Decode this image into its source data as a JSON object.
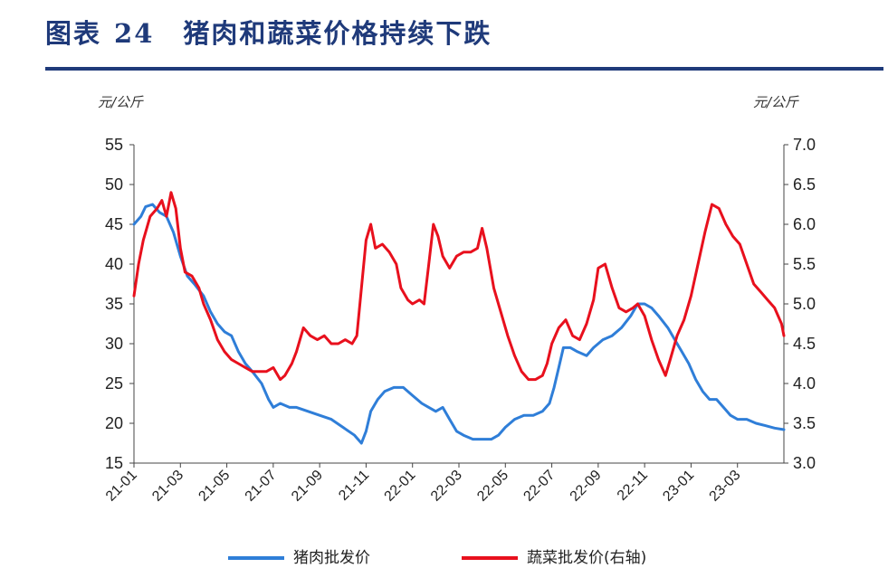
{
  "header": {
    "figure_label": "图表",
    "figure_number": "24",
    "title": "猪肉和蔬菜价格持续下跌"
  },
  "chart_data": {
    "type": "line",
    "left_unit": "元/公斤",
    "right_unit": "元/公斤",
    "y_left": {
      "min": 15,
      "max": 55,
      "ticks": [
        "15",
        "20",
        "25",
        "30",
        "35",
        "40",
        "45",
        "50",
        "55"
      ]
    },
    "y_right": {
      "min": 3.0,
      "max": 7.0,
      "ticks": [
        "3.0",
        "3.5",
        "4.0",
        "4.5",
        "5.0",
        "5.5",
        "6.0",
        "6.5",
        "7.0"
      ]
    },
    "x_ticks": [
      "21-01",
      "21-03",
      "21-05",
      "21-07",
      "21-09",
      "21-11",
      "22-01",
      "22-03",
      "22-05",
      "22-07",
      "22-09",
      "22-11",
      "23-01",
      "23-03"
    ],
    "x_range_months": [
      0,
      28
    ],
    "series": [
      {
        "name": "猪肉批发价",
        "axis": "left",
        "color": "#2f7ed8",
        "points": [
          [
            0,
            45
          ],
          [
            0.3,
            46
          ],
          [
            0.5,
            47.2
          ],
          [
            0.8,
            47.5
          ],
          [
            1.1,
            46.5
          ],
          [
            1.4,
            46
          ],
          [
            1.7,
            44
          ],
          [
            2.0,
            41
          ],
          [
            2.3,
            38.5
          ],
          [
            2.6,
            37.5
          ],
          [
            3.0,
            36
          ],
          [
            3.3,
            34
          ],
          [
            3.6,
            32.5
          ],
          [
            3.9,
            31.5
          ],
          [
            4.2,
            31
          ],
          [
            4.5,
            29
          ],
          [
            4.8,
            27.5
          ],
          [
            5.1,
            26.5
          ],
          [
            5.5,
            25
          ],
          [
            5.8,
            23
          ],
          [
            6.0,
            22
          ],
          [
            6.3,
            22.5
          ],
          [
            6.7,
            22
          ],
          [
            7.0,
            22
          ],
          [
            7.5,
            21.5
          ],
          [
            8.0,
            21
          ],
          [
            8.5,
            20.5
          ],
          [
            9.0,
            19.5
          ],
          [
            9.5,
            18.5
          ],
          [
            9.8,
            17.5
          ],
          [
            10.0,
            19
          ],
          [
            10.2,
            21.5
          ],
          [
            10.5,
            23
          ],
          [
            10.8,
            24
          ],
          [
            11.2,
            24.5
          ],
          [
            11.6,
            24.5
          ],
          [
            12.0,
            23.5
          ],
          [
            12.4,
            22.5
          ],
          [
            12.7,
            22
          ],
          [
            13.0,
            21.5
          ],
          [
            13.3,
            22
          ],
          [
            13.6,
            20.5
          ],
          [
            13.9,
            19
          ],
          [
            14.2,
            18.5
          ],
          [
            14.6,
            18
          ],
          [
            15.0,
            18
          ],
          [
            15.4,
            18
          ],
          [
            15.7,
            18.5
          ],
          [
            16.0,
            19.5
          ],
          [
            16.4,
            20.5
          ],
          [
            16.8,
            21
          ],
          [
            17.2,
            21
          ],
          [
            17.6,
            21.5
          ],
          [
            17.9,
            22.5
          ],
          [
            18.1,
            24.5
          ],
          [
            18.3,
            27
          ],
          [
            18.5,
            29.5
          ],
          [
            18.8,
            29.5
          ],
          [
            19.1,
            29
          ],
          [
            19.5,
            28.5
          ],
          [
            19.8,
            29.5
          ],
          [
            20.2,
            30.5
          ],
          [
            20.6,
            31
          ],
          [
            21.0,
            32
          ],
          [
            21.4,
            33.5
          ],
          [
            21.7,
            35
          ],
          [
            22.0,
            35
          ],
          [
            22.3,
            34.5
          ],
          [
            22.6,
            33.5
          ],
          [
            23.0,
            32
          ],
          [
            23.3,
            30.5
          ],
          [
            23.6,
            29
          ],
          [
            23.9,
            27.5
          ],
          [
            24.2,
            25.5
          ],
          [
            24.5,
            24
          ],
          [
            24.8,
            23
          ],
          [
            25.1,
            23
          ],
          [
            25.4,
            22
          ],
          [
            25.7,
            21
          ],
          [
            26.0,
            20.5
          ],
          [
            26.4,
            20.5
          ],
          [
            26.8,
            20
          ],
          [
            27.2,
            19.7
          ],
          [
            27.6,
            19.4
          ],
          [
            28.0,
            19.2
          ]
        ]
      },
      {
        "name": "蔬菜批发价(右轴)",
        "axis": "right",
        "color": "#e8101d",
        "points": [
          [
            0,
            5.1
          ],
          [
            0.2,
            5.5
          ],
          [
            0.4,
            5.8
          ],
          [
            0.7,
            6.1
          ],
          [
            1.0,
            6.2
          ],
          [
            1.2,
            6.3
          ],
          [
            1.4,
            6.1
          ],
          [
            1.6,
            6.4
          ],
          [
            1.8,
            6.2
          ],
          [
            2.0,
            5.7
          ],
          [
            2.2,
            5.4
          ],
          [
            2.5,
            5.35
          ],
          [
            2.8,
            5.2
          ],
          [
            3.0,
            5.0
          ],
          [
            3.3,
            4.8
          ],
          [
            3.6,
            4.55
          ],
          [
            3.9,
            4.4
          ],
          [
            4.2,
            4.3
          ],
          [
            4.5,
            4.25
          ],
          [
            4.8,
            4.2
          ],
          [
            5.1,
            4.15
          ],
          [
            5.4,
            4.15
          ],
          [
            5.7,
            4.15
          ],
          [
            6.0,
            4.2
          ],
          [
            6.3,
            4.05
          ],
          [
            6.5,
            4.1
          ],
          [
            6.8,
            4.25
          ],
          [
            7.0,
            4.4
          ],
          [
            7.3,
            4.7
          ],
          [
            7.6,
            4.6
          ],
          [
            7.9,
            4.55
          ],
          [
            8.2,
            4.6
          ],
          [
            8.5,
            4.5
          ],
          [
            8.8,
            4.5
          ],
          [
            9.1,
            4.55
          ],
          [
            9.4,
            4.5
          ],
          [
            9.6,
            4.6
          ],
          [
            9.8,
            5.2
          ],
          [
            10.0,
            5.8
          ],
          [
            10.2,
            6.0
          ],
          [
            10.4,
            5.7
          ],
          [
            10.7,
            5.75
          ],
          [
            11.0,
            5.65
          ],
          [
            11.3,
            5.5
          ],
          [
            11.5,
            5.2
          ],
          [
            11.8,
            5.05
          ],
          [
            12.0,
            5.0
          ],
          [
            12.3,
            5.05
          ],
          [
            12.5,
            5.0
          ],
          [
            12.7,
            5.5
          ],
          [
            12.9,
            6.0
          ],
          [
            13.1,
            5.85
          ],
          [
            13.3,
            5.6
          ],
          [
            13.6,
            5.45
          ],
          [
            13.9,
            5.6
          ],
          [
            14.2,
            5.65
          ],
          [
            14.5,
            5.65
          ],
          [
            14.8,
            5.7
          ],
          [
            15.0,
            5.95
          ],
          [
            15.2,
            5.7
          ],
          [
            15.5,
            5.2
          ],
          [
            15.8,
            4.9
          ],
          [
            16.1,
            4.6
          ],
          [
            16.4,
            4.35
          ],
          [
            16.7,
            4.15
          ],
          [
            17.0,
            4.05
          ],
          [
            17.3,
            4.05
          ],
          [
            17.6,
            4.1
          ],
          [
            17.8,
            4.25
          ],
          [
            18.0,
            4.5
          ],
          [
            18.3,
            4.7
          ],
          [
            18.6,
            4.8
          ],
          [
            18.9,
            4.6
          ],
          [
            19.2,
            4.55
          ],
          [
            19.5,
            4.75
          ],
          [
            19.8,
            5.05
          ],
          [
            20.0,
            5.45
          ],
          [
            20.3,
            5.5
          ],
          [
            20.6,
            5.2
          ],
          [
            20.9,
            4.95
          ],
          [
            21.2,
            4.9
          ],
          [
            21.5,
            4.95
          ],
          [
            21.7,
            5.0
          ],
          [
            22.0,
            4.85
          ],
          [
            22.3,
            4.55
          ],
          [
            22.6,
            4.3
          ],
          [
            22.9,
            4.1
          ],
          [
            23.1,
            4.3
          ],
          [
            23.4,
            4.6
          ],
          [
            23.7,
            4.8
          ],
          [
            24.0,
            5.1
          ],
          [
            24.3,
            5.5
          ],
          [
            24.6,
            5.9
          ],
          [
            24.9,
            6.25
          ],
          [
            25.2,
            6.2
          ],
          [
            25.5,
            6.0
          ],
          [
            25.8,
            5.85
          ],
          [
            26.1,
            5.75
          ],
          [
            26.4,
            5.5
          ],
          [
            26.7,
            5.25
          ],
          [
            27.0,
            5.15
          ],
          [
            27.3,
            5.05
          ],
          [
            27.6,
            4.95
          ],
          [
            27.9,
            4.75
          ],
          [
            28.0,
            4.6
          ]
        ]
      }
    ]
  }
}
